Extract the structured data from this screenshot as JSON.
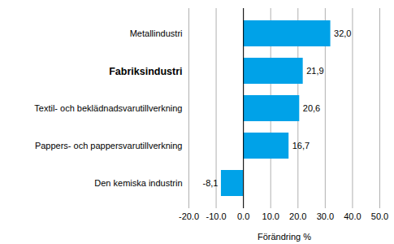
{
  "chart_data": {
    "type": "bar",
    "orientation": "horizontal",
    "categories": [
      "Metallindustri",
      "Fabriksindustri",
      "Textil- och beklädnadsvarutillverkning",
      "Pappers- och pappersvarutillverkning",
      "Den kemiska industrin"
    ],
    "values": [
      32.0,
      21.9,
      20.6,
      16.7,
      -8.1
    ],
    "value_labels": [
      "32,0",
      "21,9",
      "20,6",
      "16,7",
      "-8,1"
    ],
    "data_labels": true,
    "color": "#00a2e8",
    "x_label": "Förändring %",
    "xlim": [
      -20,
      50
    ],
    "xticks": [
      {
        "value": -20,
        "label": "-20.0"
      },
      {
        "value": -10,
        "label": "-10.0"
      },
      {
        "value": 0,
        "label": "0.0"
      },
      {
        "value": 10,
        "label": "10.0"
      },
      {
        "value": 20,
        "label": "20.0"
      },
      {
        "value": 30,
        "label": "30.0"
      },
      {
        "value": 40,
        "label": "40.0"
      },
      {
        "value": 50,
        "label": "50.0"
      }
    ],
    "grid": true
  }
}
